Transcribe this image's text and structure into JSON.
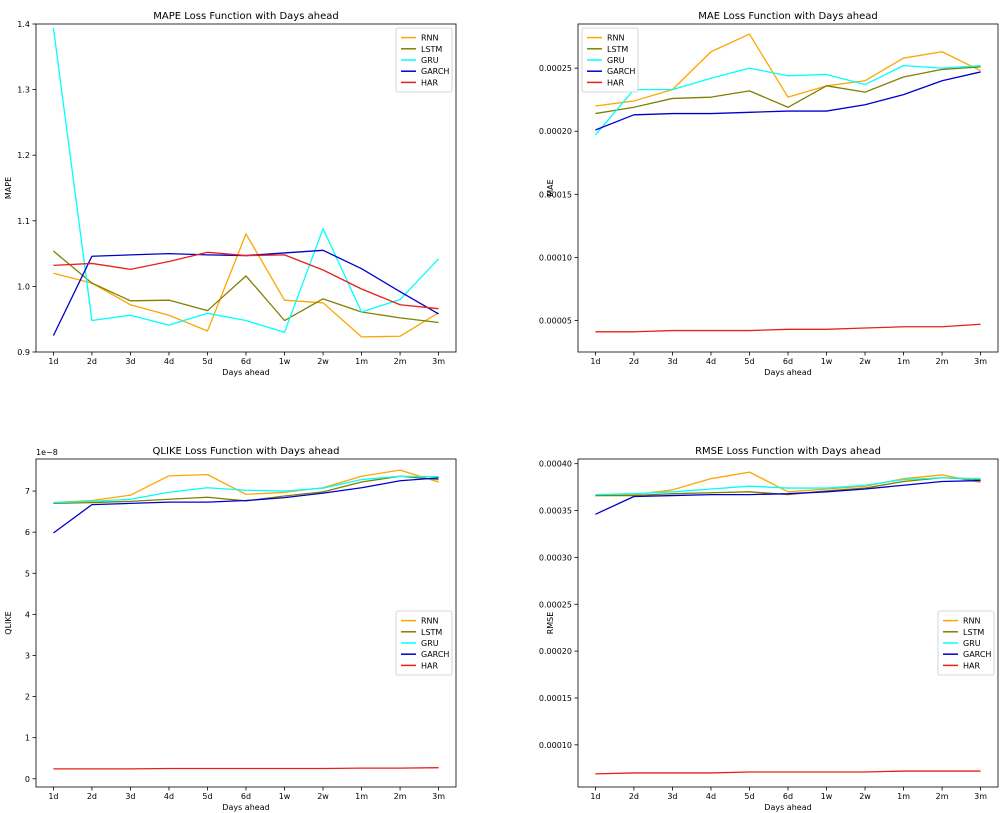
{
  "chart_data": [
    {
      "type": "line",
      "title": "MAPE Loss Function with Days ahead",
      "xlabel": "Days ahead",
      "ylabel": "MAPE",
      "categories": [
        "1d",
        "2d",
        "3d",
        "4d",
        "5d",
        "6d",
        "1w",
        "2w",
        "1m",
        "2m",
        "3m"
      ],
      "ylim": [
        0.9,
        1.4
      ],
      "yticks": [
        0.9,
        1.0,
        1.1,
        1.2,
        1.3,
        1.4
      ],
      "ytick_labels": [
        "0.9",
        "1.0",
        "1.1",
        "1.2",
        "1.3",
        "1.4"
      ],
      "offset_text": "",
      "legend_loc": "upper right",
      "series": [
        {
          "name": "RNN",
          "color": "#FFA500",
          "values": [
            1.02,
            1.005,
            0.972,
            0.956,
            0.932,
            1.08,
            0.979,
            0.975,
            0.923,
            0.924,
            0.96
          ]
        },
        {
          "name": "LSTM",
          "color": "#808000",
          "values": [
            1.054,
            1.005,
            0.978,
            0.979,
            0.963,
            1.016,
            0.948,
            0.981,
            0.961,
            0.952,
            0.945
          ]
        },
        {
          "name": "GRU",
          "color": "#00FFFF",
          "values": [
            1.394,
            0.948,
            0.956,
            0.941,
            0.959,
            0.948,
            0.93,
            1.088,
            0.961,
            0.98,
            1.042
          ]
        },
        {
          "name": "GARCH",
          "color": "#0000CD",
          "values": [
            0.925,
            1.046,
            1.048,
            1.05,
            1.048,
            1.047,
            1.051,
            1.055,
            1.027,
            0.992,
            0.958
          ]
        },
        {
          "name": "HAR",
          "color": "#E8201A",
          "values": [
            1.032,
            1.035,
            1.026,
            1.038,
            1.052,
            1.047,
            1.048,
            1.025,
            0.996,
            0.972,
            0.966
          ]
        }
      ]
    },
    {
      "type": "line",
      "title": "MAE Loss Function with Days ahead",
      "xlabel": "Days ahead",
      "ylabel": "MAE",
      "categories": [
        "1d",
        "2d",
        "3d",
        "4d",
        "5d",
        "6d",
        "1w",
        "2w",
        "1m",
        "2m",
        "3m"
      ],
      "ylim": [
        2.5e-05,
        0.000285
      ],
      "yticks": [
        5e-05,
        0.0001,
        0.00015,
        0.0002,
        0.00025
      ],
      "ytick_labels": [
        "0.00005",
        "0.00010",
        "0.00015",
        "0.00020",
        "0.00025"
      ],
      "offset_text": "",
      "legend_loc": "upper left",
      "series": [
        {
          "name": "RNN",
          "color": "#FFA500",
          "values": [
            0.00022,
            0.000224,
            0.000233,
            0.000263,
            0.000277,
            0.000227,
            0.000236,
            0.00024,
            0.000258,
            0.000263,
            0.000248
          ]
        },
        {
          "name": "LSTM",
          "color": "#808000",
          "values": [
            0.000214,
            0.000219,
            0.000226,
            0.000227,
            0.000232,
            0.000219,
            0.000236,
            0.000231,
            0.000243,
            0.000249,
            0.000251
          ]
        },
        {
          "name": "GRU",
          "color": "#00FFFF",
          "values": [
            0.000197,
            0.000233,
            0.000233,
            0.000242,
            0.00025,
            0.000244,
            0.000245,
            0.000237,
            0.000252,
            0.00025,
            0.000252
          ]
        },
        {
          "name": "GARCH",
          "color": "#0000CD",
          "values": [
            0.000201,
            0.000213,
            0.000214,
            0.000214,
            0.000215,
            0.000216,
            0.000216,
            0.000221,
            0.000229,
            0.00024,
            0.000247
          ]
        },
        {
          "name": "HAR",
          "color": "#E8201A",
          "values": [
            4.1e-05,
            4.1e-05,
            4.2e-05,
            4.2e-05,
            4.2e-05,
            4.3e-05,
            4.3e-05,
            4.4e-05,
            4.5e-05,
            4.5e-05,
            4.7e-05
          ]
        }
      ]
    },
    {
      "type": "line",
      "title": "QLIKE Loss Function with Days ahead",
      "xlabel": "Days ahead",
      "ylabel": "QLIKE",
      "categories": [
        "1d",
        "2d",
        "3d",
        "4d",
        "5d",
        "6d",
        "1w",
        "2w",
        "1m",
        "2m",
        "3m"
      ],
      "ylim": [
        -0.2,
        7.78
      ],
      "yticks": [
        0,
        1,
        2,
        3,
        4,
        5,
        6,
        7
      ],
      "ytick_labels": [
        "0",
        "1",
        "2",
        "3",
        "4",
        "5",
        "6",
        "7"
      ],
      "offset_text": "1e−8",
      "legend_loc": "center right",
      "series": [
        {
          "name": "RNN",
          "color": "#FFA500",
          "values": [
            6.72,
            6.77,
            6.9,
            7.37,
            7.4,
            6.92,
            6.97,
            7.08,
            7.36,
            7.51,
            7.22
          ]
        },
        {
          "name": "LSTM",
          "color": "#808000",
          "values": [
            6.7,
            6.72,
            6.75,
            6.8,
            6.85,
            6.76,
            6.88,
            6.98,
            7.22,
            7.36,
            7.28
          ]
        },
        {
          "name": "GRU",
          "color": "#00FFFF",
          "values": [
            6.72,
            6.75,
            6.8,
            6.97,
            7.08,
            7.02,
            7.0,
            7.07,
            7.28,
            7.36,
            7.35
          ]
        },
        {
          "name": "GARCH",
          "color": "#0000CD",
          "values": [
            5.98,
            6.67,
            6.7,
            6.73,
            6.73,
            6.77,
            6.84,
            6.95,
            7.08,
            7.25,
            7.32
          ]
        },
        {
          "name": "HAR",
          "color": "#E8201A",
          "values": [
            0.24,
            0.24,
            0.24,
            0.25,
            0.25,
            0.25,
            0.25,
            0.25,
            0.26,
            0.26,
            0.27
          ]
        }
      ]
    },
    {
      "type": "line",
      "title": "RMSE Loss Function with Days ahead",
      "xlabel": "Days ahead",
      "ylabel": "RMSE",
      "categories": [
        "1d",
        "2d",
        "3d",
        "4d",
        "5d",
        "6d",
        "1w",
        "2w",
        "1m",
        "2m",
        "3m"
      ],
      "ylim": [
        5.5e-05,
        0.000405
      ],
      "yticks": [
        0.0001,
        0.00015,
        0.0002,
        0.00025,
        0.0003,
        0.00035,
        0.0004
      ],
      "ytick_labels": [
        "0.00010",
        "0.00015",
        "0.00020",
        "0.00025",
        "0.00030",
        "0.00035",
        "0.00040"
      ],
      "offset_text": "",
      "legend_loc": "center right",
      "series": [
        {
          "name": "RNN",
          "color": "#FFA500",
          "values": [
            0.000366,
            0.000367,
            0.000372,
            0.000384,
            0.000391,
            0.00037,
            0.000373,
            0.000376,
            0.000384,
            0.000388,
            0.00038
          ]
        },
        {
          "name": "LSTM",
          "color": "#808000",
          "values": [
            0.000366,
            0.000366,
            0.000368,
            0.000369,
            0.00037,
            0.000367,
            0.000371,
            0.000374,
            0.000381,
            0.000385,
            0.000383
          ]
        },
        {
          "name": "GRU",
          "color": "#00FFFF",
          "values": [
            0.000367,
            0.000368,
            0.00037,
            0.000373,
            0.000376,
            0.000374,
            0.000374,
            0.000377,
            0.000383,
            0.000385,
            0.000384
          ]
        },
        {
          "name": "GARCH",
          "color": "#0000CD",
          "values": [
            0.000346,
            0.000365,
            0.000366,
            0.000367,
            0.000367,
            0.000368,
            0.00037,
            0.000373,
            0.000377,
            0.000381,
            0.000382
          ]
        },
        {
          "name": "HAR",
          "color": "#E8201A",
          "values": [
            6.9e-05,
            7e-05,
            7e-05,
            7e-05,
            7.1e-05,
            7.1e-05,
            7.1e-05,
            7.1e-05,
            7.2e-05,
            7.2e-05,
            7.2e-05
          ]
        }
      ]
    }
  ]
}
